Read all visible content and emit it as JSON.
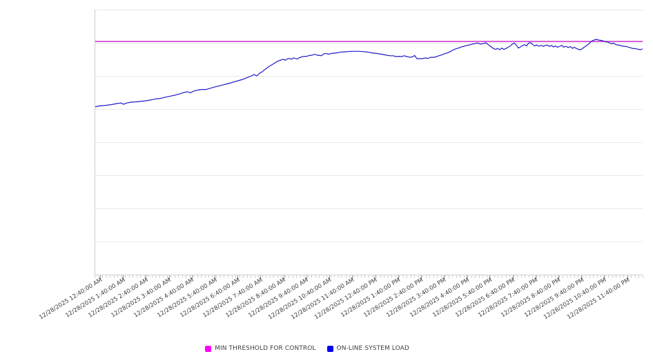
{
  "legend": {
    "items": [
      {
        "label": "MIN THRESHOLD FOR CONTROL",
        "color": "#ff00ff"
      },
      {
        "label": "ON-LINE SYSTEM LOAD",
        "color": "#0000ee"
      }
    ]
  },
  "colors": {
    "threshold_line": "#c716c7",
    "series_line": "#1d1ac9",
    "gridline": "#e8e8e8",
    "axis": "#cccccc",
    "tick_minor": "#d4d4d4",
    "tick_major": "#9b9b9b",
    "label_text": "#3d3d3d"
  },
  "chart_data": {
    "type": "line",
    "title": "",
    "xlabel": "",
    "ylabel": "",
    "x_tick_labels": [
      "12/28/2025 12:40:00 AM",
      "12/28/2025 1:40:00 AM",
      "12/28/2025 2:40:00 AM",
      "12/28/2025 3:40:00 AM",
      "12/28/2025 4:40:00 AM",
      "12/28/2025 5:40:00 AM",
      "12/28/2025 6:40:00 AM",
      "12/28/2025 7:40:00 AM",
      "12/28/2025 8:40:00 AM",
      "12/28/2025 9:40:00 AM",
      "12/28/2025 10:40:00 AM",
      "12/28/2025 11:40:00 AM",
      "12/28/2025 12:40:00 PM",
      "12/28/2025 1:40:00 PM",
      "12/28/2025 2:40:00 PM",
      "12/28/2025 3:40:00 PM",
      "12/28/2025 4:40:00 PM",
      "12/28/2025 5:40:00 PM",
      "12/28/2025 6:40:00 PM",
      "12/28/2025 7:40:00 PM",
      "12/28/2025 8:40:00 PM",
      "12/28/2025 9:40:00 PM",
      "12/28/2025 10:40:00 PM",
      "12/28/2025 11:40:00 PM"
    ],
    "y_axis": {
      "labels_visible": false,
      "min": 0,
      "max": 100,
      "gridline_count": 9,
      "units": "relative load (axis unlabeled)"
    },
    "legend_position": "bottom-center",
    "grid": "horizontal-only",
    "series": [
      {
        "name": "MIN THRESHOLD FOR CONTROL",
        "type": "threshold",
        "value": 88
      },
      {
        "name": "ON-LINE SYSTEM LOAD",
        "type": "line",
        "points": [
          [
            0.0,
            63.3
          ],
          [
            0.01,
            63.7
          ],
          [
            0.021,
            63.9
          ],
          [
            0.031,
            64.2
          ],
          [
            0.042,
            64.6
          ],
          [
            0.048,
            64.8
          ],
          [
            0.053,
            64.3
          ],
          [
            0.059,
            64.8
          ],
          [
            0.067,
            65.1
          ],
          [
            0.076,
            65.2
          ],
          [
            0.084,
            65.4
          ],
          [
            0.093,
            65.6
          ],
          [
            0.102,
            65.9
          ],
          [
            0.111,
            66.3
          ],
          [
            0.12,
            66.5
          ],
          [
            0.128,
            66.9
          ],
          [
            0.137,
            67.3
          ],
          [
            0.146,
            67.7
          ],
          [
            0.155,
            68.2
          ],
          [
            0.164,
            68.8
          ],
          [
            0.17,
            69.0
          ],
          [
            0.175,
            68.6
          ],
          [
            0.181,
            69.3
          ],
          [
            0.189,
            69.7
          ],
          [
            0.196,
            69.9
          ],
          [
            0.204,
            69.9
          ],
          [
            0.212,
            70.4
          ],
          [
            0.219,
            70.8
          ],
          [
            0.227,
            71.2
          ],
          [
            0.234,
            71.6
          ],
          [
            0.242,
            72.0
          ],
          [
            0.249,
            72.4
          ],
          [
            0.257,
            72.9
          ],
          [
            0.264,
            73.3
          ],
          [
            0.272,
            73.8
          ],
          [
            0.28,
            74.5
          ],
          [
            0.286,
            75.0
          ],
          [
            0.291,
            75.5
          ],
          [
            0.296,
            75.0
          ],
          [
            0.301,
            76.0
          ],
          [
            0.306,
            76.6
          ],
          [
            0.31,
            77.3
          ],
          [
            0.314,
            77.9
          ],
          [
            0.317,
            78.4
          ],
          [
            0.321,
            78.9
          ],
          [
            0.325,
            79.4
          ],
          [
            0.329,
            79.9
          ],
          [
            0.332,
            80.3
          ],
          [
            0.336,
            80.7
          ],
          [
            0.34,
            81.0
          ],
          [
            0.344,
            81.3
          ],
          [
            0.348,
            80.9
          ],
          [
            0.351,
            81.4
          ],
          [
            0.355,
            81.6
          ],
          [
            0.359,
            81.3
          ],
          [
            0.363,
            81.8
          ],
          [
            0.366,
            81.6
          ],
          [
            0.37,
            81.4
          ],
          [
            0.374,
            81.9
          ],
          [
            0.378,
            82.2
          ],
          [
            0.382,
            82.4
          ],
          [
            0.387,
            82.4
          ],
          [
            0.392,
            82.7
          ],
          [
            0.397,
            82.8
          ],
          [
            0.402,
            83.2
          ],
          [
            0.406,
            82.8
          ],
          [
            0.411,
            82.7
          ],
          [
            0.414,
            82.6
          ],
          [
            0.418,
            83.3
          ],
          [
            0.422,
            83.5
          ],
          [
            0.427,
            83.2
          ],
          [
            0.432,
            83.5
          ],
          [
            0.437,
            83.6
          ],
          [
            0.442,
            83.7
          ],
          [
            0.447,
            83.9
          ],
          [
            0.452,
            84.0
          ],
          [
            0.457,
            84.1
          ],
          [
            0.463,
            84.2
          ],
          [
            0.47,
            84.3
          ],
          [
            0.476,
            84.3
          ],
          [
            0.482,
            84.3
          ],
          [
            0.489,
            84.2
          ],
          [
            0.495,
            84.1
          ],
          [
            0.501,
            83.9
          ],
          [
            0.508,
            83.6
          ],
          [
            0.514,
            83.5
          ],
          [
            0.52,
            83.3
          ],
          [
            0.526,
            83.1
          ],
          [
            0.533,
            82.8
          ],
          [
            0.539,
            82.6
          ],
          [
            0.545,
            82.6
          ],
          [
            0.55,
            82.3
          ],
          [
            0.555,
            82.4
          ],
          [
            0.56,
            82.3
          ],
          [
            0.565,
            82.6
          ],
          [
            0.57,
            82.3
          ],
          [
            0.576,
            82.0
          ],
          [
            0.581,
            82.3
          ],
          [
            0.584,
            82.7
          ],
          [
            0.588,
            81.5
          ],
          [
            0.593,
            81.5
          ],
          [
            0.598,
            81.5
          ],
          [
            0.603,
            81.8
          ],
          [
            0.608,
            81.6
          ],
          [
            0.613,
            82.0
          ],
          [
            0.618,
            82.0
          ],
          [
            0.623,
            82.2
          ],
          [
            0.628,
            82.6
          ],
          [
            0.633,
            82.9
          ],
          [
            0.638,
            83.3
          ],
          [
            0.644,
            83.7
          ],
          [
            0.649,
            84.2
          ],
          [
            0.654,
            84.8
          ],
          [
            0.659,
            85.2
          ],
          [
            0.664,
            85.5
          ],
          [
            0.669,
            85.9
          ],
          [
            0.674,
            86.2
          ],
          [
            0.679,
            86.5
          ],
          [
            0.684,
            86.7
          ],
          [
            0.689,
            87.0
          ],
          [
            0.694,
            87.2
          ],
          [
            0.699,
            87.4
          ],
          [
            0.704,
            87.0
          ],
          [
            0.709,
            87.2
          ],
          [
            0.714,
            87.5
          ],
          [
            0.719,
            86.7
          ],
          [
            0.724,
            85.9
          ],
          [
            0.728,
            85.3
          ],
          [
            0.732,
            85.0
          ],
          [
            0.735,
            85.4
          ],
          [
            0.739,
            84.9
          ],
          [
            0.743,
            85.5
          ],
          [
            0.747,
            85.0
          ],
          [
            0.751,
            85.4
          ],
          [
            0.754,
            85.8
          ],
          [
            0.758,
            86.2
          ],
          [
            0.762,
            87.0
          ],
          [
            0.766,
            87.4
          ],
          [
            0.77,
            86.5
          ],
          [
            0.773,
            85.5
          ],
          [
            0.777,
            85.9
          ],
          [
            0.781,
            86.5
          ],
          [
            0.785,
            86.8
          ],
          [
            0.788,
            86.3
          ],
          [
            0.792,
            87.4
          ],
          [
            0.796,
            87.5
          ],
          [
            0.8,
            86.8
          ],
          [
            0.803,
            86.3
          ],
          [
            0.807,
            86.7
          ],
          [
            0.811,
            86.2
          ],
          [
            0.815,
            86.6
          ],
          [
            0.819,
            86.1
          ],
          [
            0.822,
            86.5
          ],
          [
            0.826,
            86.7
          ],
          [
            0.83,
            86.1
          ],
          [
            0.834,
            86.5
          ],
          [
            0.837,
            85.9
          ],
          [
            0.841,
            86.3
          ],
          [
            0.845,
            85.8
          ],
          [
            0.849,
            86.2
          ],
          [
            0.853,
            86.5
          ],
          [
            0.856,
            85.8
          ],
          [
            0.86,
            86.2
          ],
          [
            0.864,
            85.7
          ],
          [
            0.868,
            86.1
          ],
          [
            0.872,
            85.4
          ],
          [
            0.875,
            85.8
          ],
          [
            0.879,
            85.4
          ],
          [
            0.883,
            85.0
          ],
          [
            0.887,
            84.9
          ],
          [
            0.89,
            85.3
          ],
          [
            0.894,
            85.9
          ],
          [
            0.898,
            86.5
          ],
          [
            0.902,
            87.1
          ],
          [
            0.905,
            87.8
          ],
          [
            0.909,
            88.3
          ],
          [
            0.913,
            88.7
          ],
          [
            0.917,
            88.7
          ],
          [
            0.921,
            88.5
          ],
          [
            0.924,
            88.4
          ],
          [
            0.928,
            88.2
          ],
          [
            0.932,
            87.9
          ],
          [
            0.936,
            87.8
          ],
          [
            0.939,
            87.5
          ],
          [
            0.943,
            87.1
          ],
          [
            0.947,
            87.4
          ],
          [
            0.951,
            86.8
          ],
          [
            0.954,
            86.7
          ],
          [
            0.958,
            86.6
          ],
          [
            0.962,
            86.3
          ],
          [
            0.966,
            86.2
          ],
          [
            0.97,
            86.1
          ],
          [
            0.973,
            85.9
          ],
          [
            0.977,
            85.7
          ],
          [
            0.981,
            85.4
          ],
          [
            0.985,
            85.3
          ],
          [
            0.989,
            85.2
          ],
          [
            0.993,
            85.0
          ],
          [
            0.996,
            84.9
          ],
          [
            1.0,
            85.2
          ]
        ]
      }
    ]
  }
}
